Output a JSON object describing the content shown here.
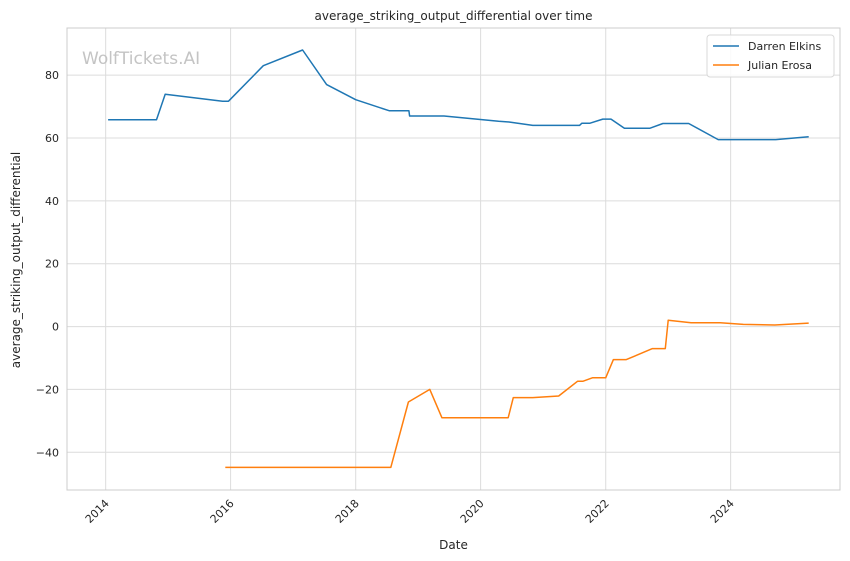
{
  "chart_data": {
    "type": "line",
    "title": "average_striking_output_differential over time",
    "xlabel": "Date",
    "ylabel": "average_striking_output_differential",
    "watermark": "WolfTickets.AI",
    "xlim": [
      "2013-05-20",
      "2025-10-01"
    ],
    "ylim": [
      -52,
      95
    ],
    "x_ticks": [
      "2014",
      "2016",
      "2018",
      "2020",
      "2022",
      "2024"
    ],
    "y_ticks": [
      -40,
      -20,
      0,
      20,
      40,
      60,
      80
    ],
    "grid": true,
    "legend_position": "top-right",
    "series": [
      {
        "name": "Darren Elkins",
        "color": "#1f77b4",
        "points": [
          [
            "2014-01-15",
            65.8
          ],
          [
            "2014-10-25",
            65.8
          ],
          [
            "2014-12-15",
            73.9
          ],
          [
            "2015-11-15",
            71.7
          ],
          [
            "2015-12-20",
            71.7
          ],
          [
            "2016-07-10",
            83.0
          ],
          [
            "2017-02-25",
            88.0
          ],
          [
            "2017-07-15",
            77.0
          ],
          [
            "2018-01-01",
            72.2
          ],
          [
            "2018-07-15",
            68.7
          ],
          [
            "2018-11-08",
            68.7
          ],
          [
            "2018-11-12",
            67.0
          ],
          [
            "2019-06-01",
            67.0
          ],
          [
            "2020-04-15",
            65.3
          ],
          [
            "2020-06-15",
            65.1
          ],
          [
            "2020-11-01",
            64.0
          ],
          [
            "2021-08-01",
            64.0
          ],
          [
            "2021-08-15",
            64.7
          ],
          [
            "2021-10-01",
            64.7
          ],
          [
            "2021-12-15",
            66.0
          ],
          [
            "2022-02-01",
            66.0
          ],
          [
            "2022-04-20",
            63.1
          ],
          [
            "2022-09-15",
            63.1
          ],
          [
            "2022-12-01",
            64.6
          ],
          [
            "2023-05-01",
            64.6
          ],
          [
            "2023-10-20",
            59.5
          ],
          [
            "2024-09-20",
            59.5
          ],
          [
            "2025-04-01",
            60.4
          ]
        ]
      },
      {
        "name": "Julian Erosa",
        "color": "#ff7f0e",
        "points": [
          [
            "2015-12-01",
            -44.8
          ],
          [
            "2018-07-25",
            -44.8
          ],
          [
            "2018-11-05",
            -24.0
          ],
          [
            "2019-03-10",
            -20.0
          ],
          [
            "2019-05-20",
            -29.0
          ],
          [
            "2020-06-10",
            -29.0
          ],
          [
            "2020-07-10",
            -22.6
          ],
          [
            "2020-11-01",
            -22.6
          ],
          [
            "2021-04-01",
            -22.1
          ],
          [
            "2021-07-20",
            -17.4
          ],
          [
            "2021-08-20",
            -17.4
          ],
          [
            "2021-10-15",
            -16.3
          ],
          [
            "2022-01-01",
            -16.3
          ],
          [
            "2022-02-15",
            -10.5
          ],
          [
            "2022-05-01",
            -10.5
          ],
          [
            "2022-10-01",
            -7.0
          ],
          [
            "2022-12-15",
            -7.0
          ],
          [
            "2023-01-01",
            2.0
          ],
          [
            "2023-05-15",
            1.2
          ],
          [
            "2023-11-01",
            1.2
          ],
          [
            "2024-03-15",
            0.7
          ],
          [
            "2024-09-15",
            0.5
          ],
          [
            "2025-04-01",
            1.1
          ]
        ]
      }
    ]
  }
}
